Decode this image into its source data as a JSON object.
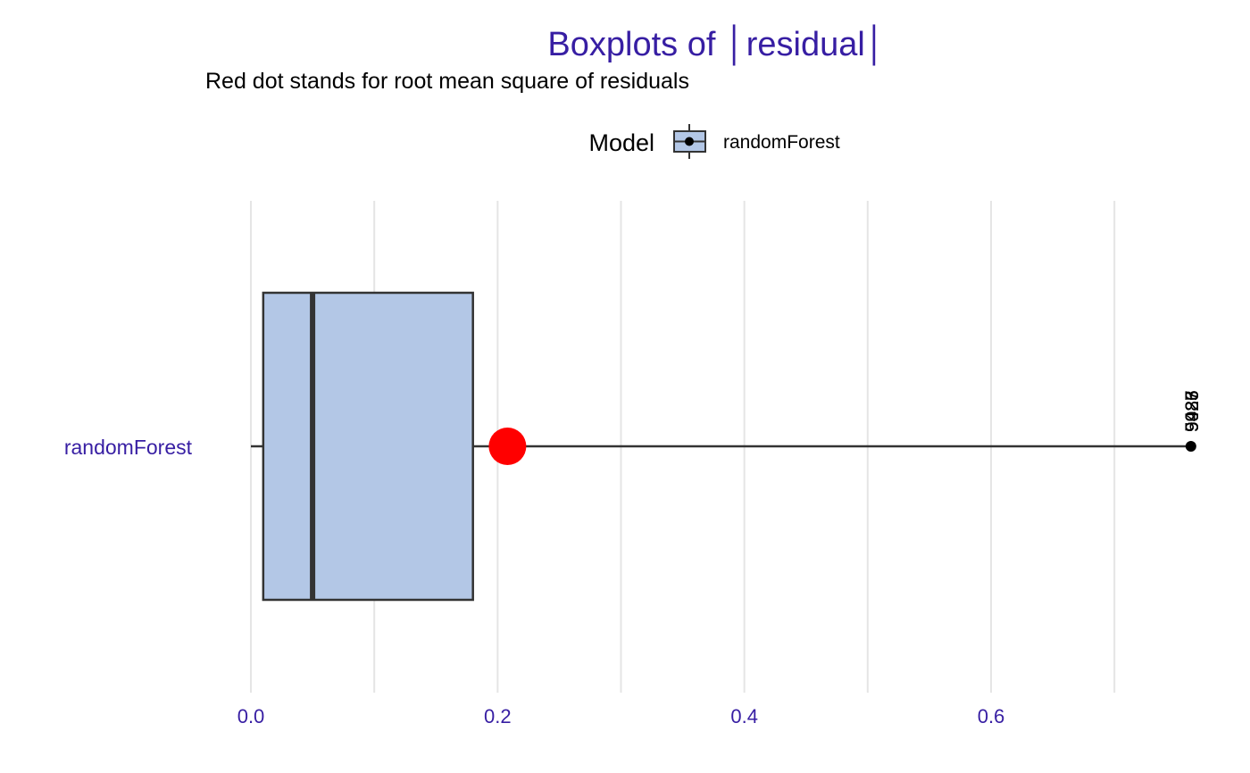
{
  "colors": {
    "title": "#371ea3",
    "axis_text": "#371ea3",
    "grid": "#e5e5e5",
    "box_fill": "#b3c7e6",
    "box_stroke": "#333333",
    "rmse_dot": "#ff0000",
    "outlier": "#000000"
  },
  "chart_data": {
    "type": "boxplot",
    "title": "Boxplots of │residual│",
    "subtitle": "Red dot stands for root mean square of residuals",
    "legend": {
      "title": "Model",
      "placement": "top",
      "entries": [
        "randomForest"
      ]
    },
    "orientation": "horizontal",
    "grid": true,
    "xlim": [
      -0.01,
      0.76
    ],
    "x_ticks": [
      0.0,
      0.2,
      0.4,
      0.6
    ],
    "x_tick_labels": [
      "0.0",
      "0.2",
      "0.4",
      "0.6"
    ],
    "x_minor_gridlines": [
      0.1,
      0.3,
      0.5,
      0.7
    ],
    "categories": [
      "randomForest"
    ],
    "series": [
      {
        "name": "randomForest",
        "whisker_low": 0.0,
        "q1": 0.01,
        "median": 0.05,
        "q3": 0.18,
        "whisker_high": 0.762,
        "rmse": 0.208,
        "outliers": [
          {
            "value": 0.762,
            "labels": [
              "5925",
              "9087",
              "9983",
              "9426"
            ]
          }
        ]
      }
    ]
  }
}
